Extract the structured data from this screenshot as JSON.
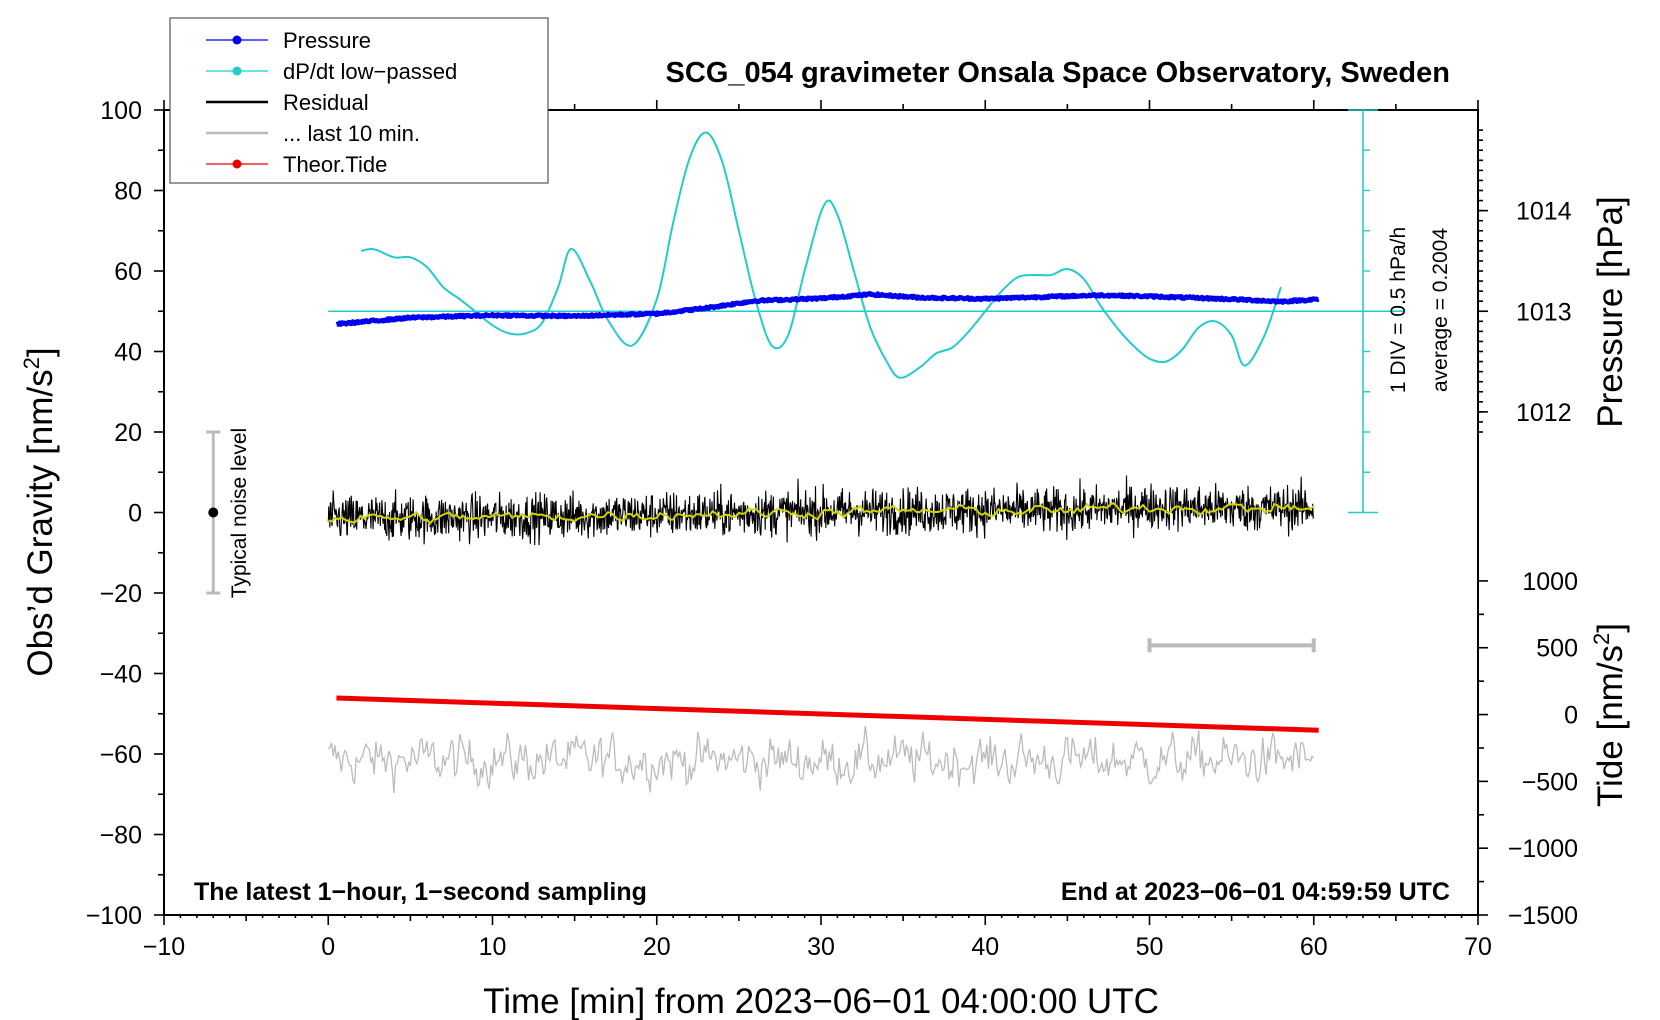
{
  "chart_data": {
    "type": "line",
    "title": "SCG_054 gravimeter Onsala Space Observatory, Sweden",
    "xlabel": "Time [min] from 2023−06−01 04:00:00 UTC",
    "ylabel": "Obs’d Gravity [nm/s",
    "ylabel_sup": "2",
    "ylabel_end": "]",
    "xlim": [
      -10,
      70
    ],
    "ylim": [
      -100,
      100
    ],
    "x_ticks": [
      -10,
      0,
      10,
      20,
      30,
      40,
      50,
      60,
      70
    ],
    "x_tick_labels": [
      "−10",
      "0",
      "10",
      "20",
      "30",
      "40",
      "50",
      "60",
      "70"
    ],
    "y_ticks": [
      -100,
      -80,
      -60,
      -40,
      -20,
      0,
      20,
      40,
      60,
      80,
      100
    ],
    "y_tick_labels": [
      "−100",
      "−80",
      "−60",
      "−40",
      "−20",
      "0",
      "20",
      "40",
      "60",
      "80",
      "100"
    ],
    "pressure_axis": {
      "label": "Pressure [hPa]",
      "ticks": [
        1012,
        1013,
        1014
      ],
      "tick_labels": [
        "1012",
        "1013",
        "1014"
      ],
      "gravity_at_1012": 25,
      "gravity_at_1013": 50,
      "gravity_at_1014": 75
    },
    "tide_axis": {
      "label": "Tide [nm/s",
      "label_sup": "2",
      "label_end": "]",
      "ticks": [
        1000,
        500,
        0,
        -500,
        -1000,
        -1500
      ],
      "tick_labels": [
        "1000",
        "500",
        "0",
        "−500",
        "−1000",
        "−1500"
      ],
      "gravity_at_1000": -17,
      "gravity_at_minus1500": -100
    },
    "dpdt_scale_label": "1 DIV = 0.5 hPa/h",
    "average_label": "average = 0.2004",
    "dpdt_baseline": 50,
    "dpdt_axis": {
      "x": 63,
      "ymin": 0,
      "ymax": 100,
      "ticks": [
        0,
        10,
        20,
        30,
        40,
        50,
        60,
        70,
        80,
        90,
        100
      ]
    },
    "noise_bar": {
      "x": -7,
      "y": 0,
      "ymin": -20,
      "ymax": 20,
      "label": "Typical noise level"
    },
    "last10_bar": {
      "xmin": 50,
      "xmax": 60,
      "y": -33
    },
    "footer_left": "The latest 1−hour, 1−second sampling",
    "footer_right": "End at 2023−06−01 04:59:59 UTC",
    "series": [
      {
        "name": "Pressure",
        "color": "#0000ee",
        "style": "line-dots",
        "x": [
          0.5,
          5,
          10,
          15,
          20,
          23,
          26,
          30,
          33,
          36,
          40,
          43,
          47,
          50,
          55,
          58,
          60.3
        ],
        "y": [
          46.8,
          48.4,
          49.0,
          48.8,
          49.4,
          50.8,
          52.6,
          53.2,
          54.2,
          53.4,
          53.1,
          53.5,
          54.0,
          53.7,
          53.0,
          52.4,
          53.0
        ]
      },
      {
        "name": "dP/dt low−passed",
        "color": "#22cccc",
        "style": "line",
        "x": [
          2,
          2.8,
          4,
          5,
          6,
          7,
          8,
          9,
          10,
          11,
          12,
          13,
          14,
          14.8,
          16,
          17,
          18.5,
          20,
          21,
          22,
          23,
          24,
          25,
          26,
          27,
          28,
          29,
          30.2,
          31,
          32,
          33,
          34,
          34.8,
          36,
          37,
          38,
          39,
          40,
          41,
          42,
          43,
          44,
          45,
          46,
          47,
          48,
          49,
          50,
          51,
          52,
          53,
          54,
          55,
          55.8,
          57,
          58
        ],
        "y": [
          65,
          65.4,
          63.4,
          63.4,
          61,
          56,
          53,
          49.8,
          46.5,
          44.5,
          44.5,
          47,
          56,
          65.5,
          57,
          48,
          41.5,
          53,
          72,
          88,
          94.4,
          87,
          70,
          53,
          41.5,
          44,
          60,
          76.5,
          74,
          60,
          46,
          37.5,
          33.5,
          36,
          39.5,
          41,
          45,
          50,
          55,
          58.5,
          59,
          59,
          60.5,
          58,
          51.5,
          46,
          41.5,
          38.2,
          37.5,
          40.5,
          46,
          47.5,
          44,
          36.5,
          44,
          56
        ]
      },
      {
        "name": "Residual",
        "color": "#000000",
        "style": "line",
        "x_range": [
          0,
          60
        ],
        "center": [
          [
            0,
            -1.5
          ],
          [
            10,
            -1.2
          ],
          [
            20,
            -0.5
          ],
          [
            30,
            0.2
          ],
          [
            40,
            0.5
          ],
          [
            45,
            0.3
          ],
          [
            50,
            1.5
          ],
          [
            55,
            1.0
          ],
          [
            60,
            1.2
          ]
        ],
        "amplitude": 4.8
      },
      {
        "name": "Residual smoothed",
        "color": "#d4d400",
        "style": "line",
        "x_range": [
          0,
          60
        ]
      },
      {
        "name": "... last 10 min.",
        "color": "#bbbbbb",
        "style": "line",
        "x_range": [
          0,
          60
        ],
        "center_y": -61.5,
        "amplitude": 5.5
      },
      {
        "name": "Theor.Tide",
        "color": "#ee0000",
        "style": "line-dots",
        "x": [
          0.5,
          60.3
        ],
        "y": [
          -46.1,
          -54.1
        ]
      }
    ],
    "legend": {
      "placement": "top-left",
      "entries": [
        {
          "label": "Pressure",
          "color": "#0000ee",
          "marker": true
        },
        {
          "label": "dP/dt low−passed",
          "color": "#22cccc",
          "marker": true
        },
        {
          "label": "Residual",
          "color": "#000000",
          "marker": false
        },
        {
          "label": "... last 10 min.",
          "color": "#bbbbbb",
          "marker": false
        },
        {
          "label": "Theor.Tide",
          "color": "#ee0000",
          "marker": true
        }
      ]
    }
  }
}
